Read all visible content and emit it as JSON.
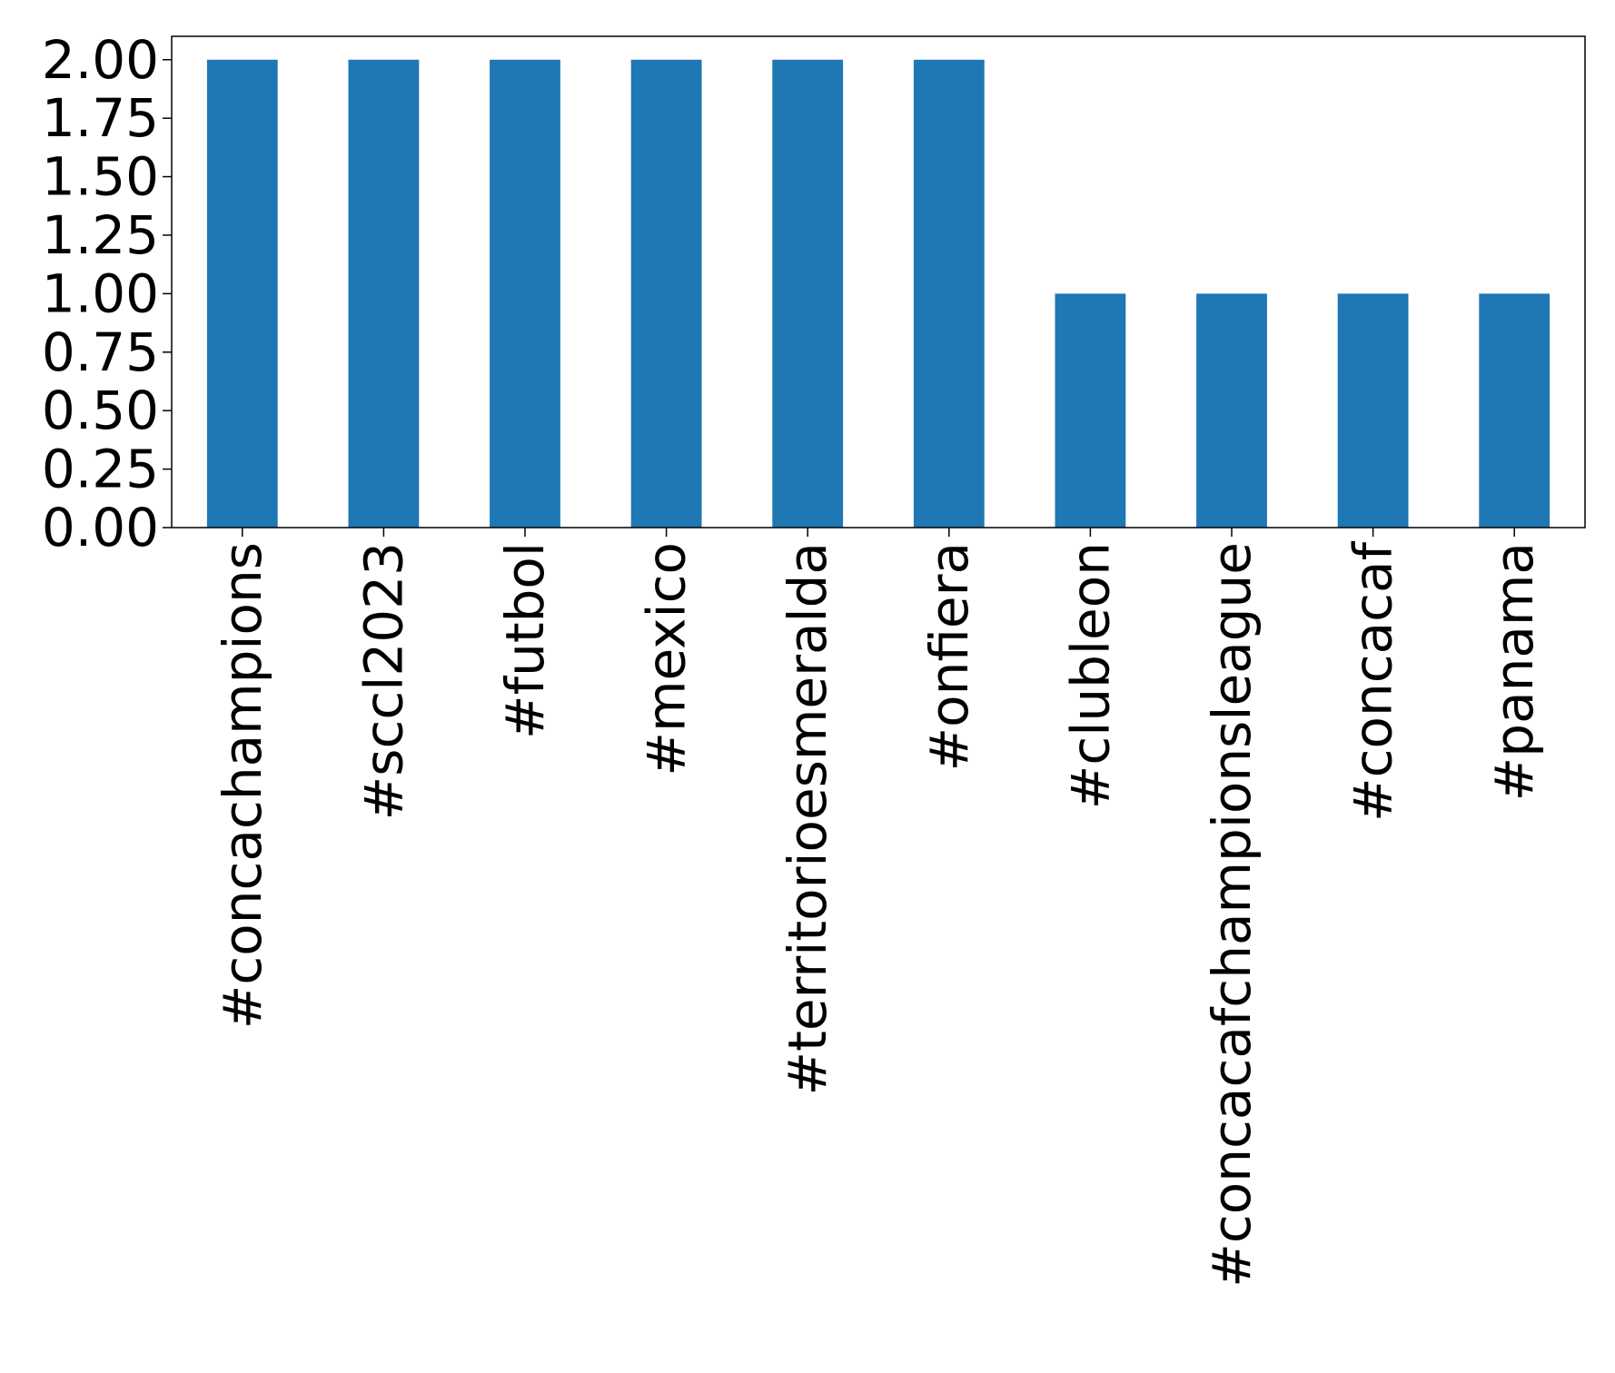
{
  "chart_data": {
    "type": "bar",
    "title": "",
    "xlabel": "",
    "ylabel": "",
    "categories": [
      "#concachampions",
      "#sccl2023",
      "#futbol",
      "#mexico",
      "#territorioesmeralda",
      "#onfiera",
      "#clubleon",
      "#concacafchampionsleague",
      "#concacaf",
      "#panama"
    ],
    "values": [
      2,
      2,
      2,
      2,
      2,
      2,
      1,
      1,
      1,
      1
    ],
    "ylim": [
      0,
      2.1
    ],
    "yticks": [
      "0.00",
      "0.25",
      "0.50",
      "0.75",
      "1.00",
      "1.25",
      "1.50",
      "1.75",
      "2.00"
    ],
    "grid": false,
    "bar_color": "#1f77b4"
  }
}
